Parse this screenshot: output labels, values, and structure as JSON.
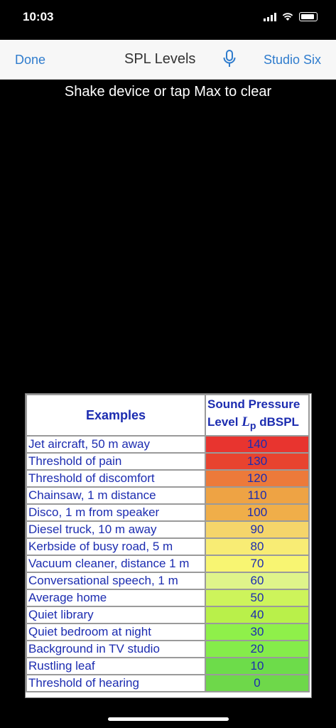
{
  "status": {
    "time": "10:03"
  },
  "nav": {
    "done": "Done",
    "title": "SPL Levels",
    "right": "Studio Six",
    "mic_icon": "microphone-icon"
  },
  "hint": "Shake device or tap Max to clear",
  "table": {
    "header_examples": "Examples",
    "header_level_line1": "Sound Pressure",
    "header_level_line2_prefix": "Level ",
    "header_level_symbol": "L",
    "header_level_subscript": "p",
    "header_level_unit": " dBSPL",
    "rows": [
      {
        "name": "Jet aircraft, 50 m away",
        "value": "140",
        "color": "#e8342f"
      },
      {
        "name": "Threshold of pain",
        "value": "130",
        "color": "#e8432f"
      },
      {
        "name": "Threshold of discomfort",
        "value": "120",
        "color": "#ec7a3a"
      },
      {
        "name": "Chainsaw, 1 m distance",
        "value": "110",
        "color": "#eea344"
      },
      {
        "name": "Disco, 1 m from speaker",
        "value": "100",
        "color": "#f0ae49"
      },
      {
        "name": "Diesel truck, 10 m away",
        "value": "90",
        "color": "#f5d56a"
      },
      {
        "name": "Kerbside of busy road, 5 m",
        "value": "80",
        "color": "#f8ec74"
      },
      {
        "name": "Vacuum cleaner, distance 1 m",
        "value": "70",
        "color": "#f8f572"
      },
      {
        "name": "Conversational speech, 1 m",
        "value": "60",
        "color": "#dff48a"
      },
      {
        "name": "Average home",
        "value": "50",
        "color": "#cdf45b"
      },
      {
        "name": "Quiet library",
        "value": "40",
        "color": "#b9f04a"
      },
      {
        "name": "Quiet bedroom at night",
        "value": "30",
        "color": "#8ff04a"
      },
      {
        "name": "Background in TV studio",
        "value": "20",
        "color": "#85ec4a"
      },
      {
        "name": "Rustling leaf",
        "value": "10",
        "color": "#6ddc4a"
      },
      {
        "name": "Threshold of hearing",
        "value": "0",
        "color": "#6ed84a"
      }
    ]
  }
}
